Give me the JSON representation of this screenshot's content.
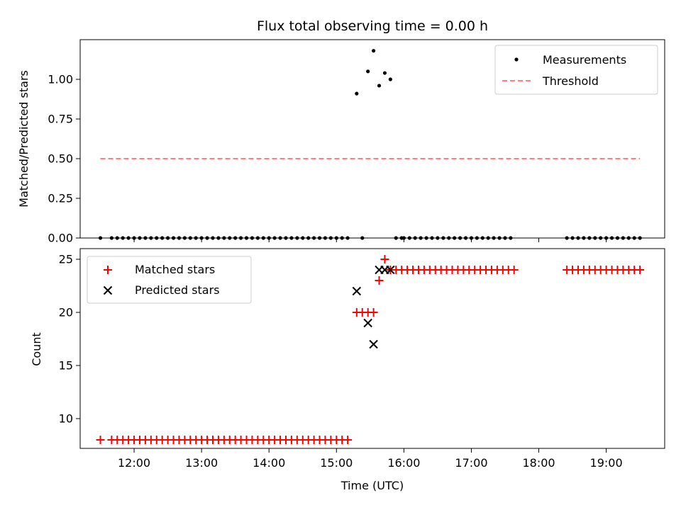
{
  "chart_data": [
    {
      "type": "scatter",
      "title": "Flux total observing time = 0.00 h",
      "xlabel": "",
      "ylabel": "Matched/Predicted stars",
      "xlim": [
        "11:12",
        "19:52"
      ],
      "ylim": [
        0,
        1.25
      ],
      "yticks": [
        "0.00",
        "0.25",
        "0.50",
        "0.75",
        "1.00"
      ],
      "ytick_values": [
        0,
        0.25,
        0.5,
        0.75,
        1.0
      ],
      "grid": false,
      "legend": "top-right",
      "colors": {
        "measurements": "#000000",
        "threshold": "#ff7f7f"
      },
      "series": [
        {
          "name": "Measurements",
          "marker": "dot",
          "x": [
            "11:30",
            "11:40",
            "11:45",
            "11:50",
            "11:55",
            "12:00",
            "12:05",
            "12:10",
            "12:15",
            "12:20",
            "12:25",
            "12:30",
            "12:35",
            "12:40",
            "12:45",
            "12:50",
            "12:55",
            "13:00",
            "13:05",
            "13:10",
            "13:15",
            "13:20",
            "13:25",
            "13:30",
            "13:35",
            "13:40",
            "13:45",
            "13:50",
            "13:55",
            "14:00",
            "14:05",
            "14:10",
            "14:15",
            "14:20",
            "14:25",
            "14:30",
            "14:35",
            "14:40",
            "14:45",
            "14:50",
            "14:55",
            "15:00",
            "15:05",
            "15:10",
            "15:18",
            "15:23",
            "15:28",
            "15:33",
            "15:38",
            "15:43",
            "15:48",
            "15:53",
            "15:58",
            "16:00",
            "16:05",
            "16:10",
            "16:15",
            "16:20",
            "16:25",
            "16:30",
            "16:35",
            "16:40",
            "16:45",
            "16:50",
            "16:55",
            "17:00",
            "17:05",
            "17:10",
            "17:15",
            "17:20",
            "17:25",
            "17:30",
            "17:35",
            "18:25",
            "18:30",
            "18:35",
            "18:40",
            "18:45",
            "18:50",
            "18:55",
            "19:00",
            "19:05",
            "19:10",
            "19:15",
            "19:20",
            "19:25",
            "19:30"
          ],
          "y": [
            0,
            0,
            0,
            0,
            0,
            0,
            0,
            0,
            0,
            0,
            0,
            0,
            0,
            0,
            0,
            0,
            0,
            0,
            0,
            0,
            0,
            0,
            0,
            0,
            0,
            0,
            0,
            0,
            0,
            0,
            0,
            0,
            0,
            0,
            0,
            0,
            0,
            0,
            0,
            0,
            0,
            0,
            0,
            0,
            0.91,
            0,
            1.05,
            1.18,
            0.96,
            1.04,
            1.0,
            0,
            0,
            0,
            0,
            0,
            0,
            0,
            0,
            0,
            0,
            0,
            0,
            0,
            0,
            0,
            0,
            0,
            0,
            0,
            0,
            0,
            0,
            0,
            0,
            0,
            0,
            0,
            0,
            0,
            0,
            0,
            0,
            0,
            0,
            0,
            0
          ]
        },
        {
          "name": "Threshold",
          "style": "dashed",
          "x": [
            "11:30",
            "19:30"
          ],
          "y": [
            0.5,
            0.5
          ]
        }
      ]
    },
    {
      "type": "scatter",
      "title": "",
      "xlabel": "Time (UTC)",
      "ylabel": "Count",
      "xlim": [
        "11:12",
        "19:52"
      ],
      "ylim": [
        7.2,
        26
      ],
      "xticks": [
        "12:00",
        "13:00",
        "14:00",
        "15:00",
        "16:00",
        "17:00",
        "18:00",
        "19:00"
      ],
      "yticks": [
        "10",
        "15",
        "20",
        "25"
      ],
      "ytick_values": [
        10,
        15,
        20,
        25
      ],
      "grid": false,
      "legend": "top-left",
      "colors": {
        "matched": "#ff0000",
        "predicted": "#000000"
      },
      "series": [
        {
          "name": "Matched stars",
          "marker": "plus",
          "x": [
            "11:30",
            "11:40",
            "11:45",
            "11:50",
            "11:55",
            "12:00",
            "12:05",
            "12:10",
            "12:15",
            "12:20",
            "12:25",
            "12:30",
            "12:35",
            "12:40",
            "12:45",
            "12:50",
            "12:55",
            "13:00",
            "13:05",
            "13:10",
            "13:15",
            "13:20",
            "13:25",
            "13:30",
            "13:35",
            "13:40",
            "13:45",
            "13:50",
            "13:55",
            "14:00",
            "14:05",
            "14:10",
            "14:15",
            "14:20",
            "14:25",
            "14:30",
            "14:35",
            "14:40",
            "14:45",
            "14:50",
            "14:55",
            "15:00",
            "15:05",
            "15:10",
            "15:18",
            "15:23",
            "15:28",
            "15:33",
            "15:38",
            "15:43",
            "15:48",
            "15:53",
            "15:58",
            "16:03",
            "16:08",
            "16:13",
            "16:18",
            "16:23",
            "16:28",
            "16:33",
            "16:38",
            "16:43",
            "16:48",
            "16:53",
            "16:58",
            "17:03",
            "17:08",
            "17:13",
            "17:18",
            "17:23",
            "17:28",
            "17:33",
            "17:38",
            "18:25",
            "18:30",
            "18:35",
            "18:40",
            "18:45",
            "18:50",
            "18:55",
            "19:00",
            "19:05",
            "19:10",
            "19:15",
            "19:20",
            "19:25",
            "19:30"
          ],
          "y": [
            8,
            8,
            8,
            8,
            8,
            8,
            8,
            8,
            8,
            8,
            8,
            8,
            8,
            8,
            8,
            8,
            8,
            8,
            8,
            8,
            8,
            8,
            8,
            8,
            8,
            8,
            8,
            8,
            8,
            8,
            8,
            8,
            8,
            8,
            8,
            8,
            8,
            8,
            8,
            8,
            8,
            8,
            8,
            8,
            20,
            20,
            20,
            20,
            23,
            25,
            24,
            24,
            24,
            24,
            24,
            24,
            24,
            24,
            24,
            24,
            24,
            24,
            24,
            24,
            24,
            24,
            24,
            24,
            24,
            24,
            24,
            24,
            24,
            24,
            24,
            24,
            24,
            24,
            24,
            24,
            24,
            24,
            24,
            24,
            24,
            24,
            24
          ]
        },
        {
          "name": "Predicted stars",
          "marker": "x",
          "x": [
            "15:18",
            "15:28",
            "15:33",
            "15:38",
            "15:43",
            "15:48"
          ],
          "y": [
            22,
            19,
            17,
            24,
            24,
            24
          ]
        }
      ]
    }
  ]
}
